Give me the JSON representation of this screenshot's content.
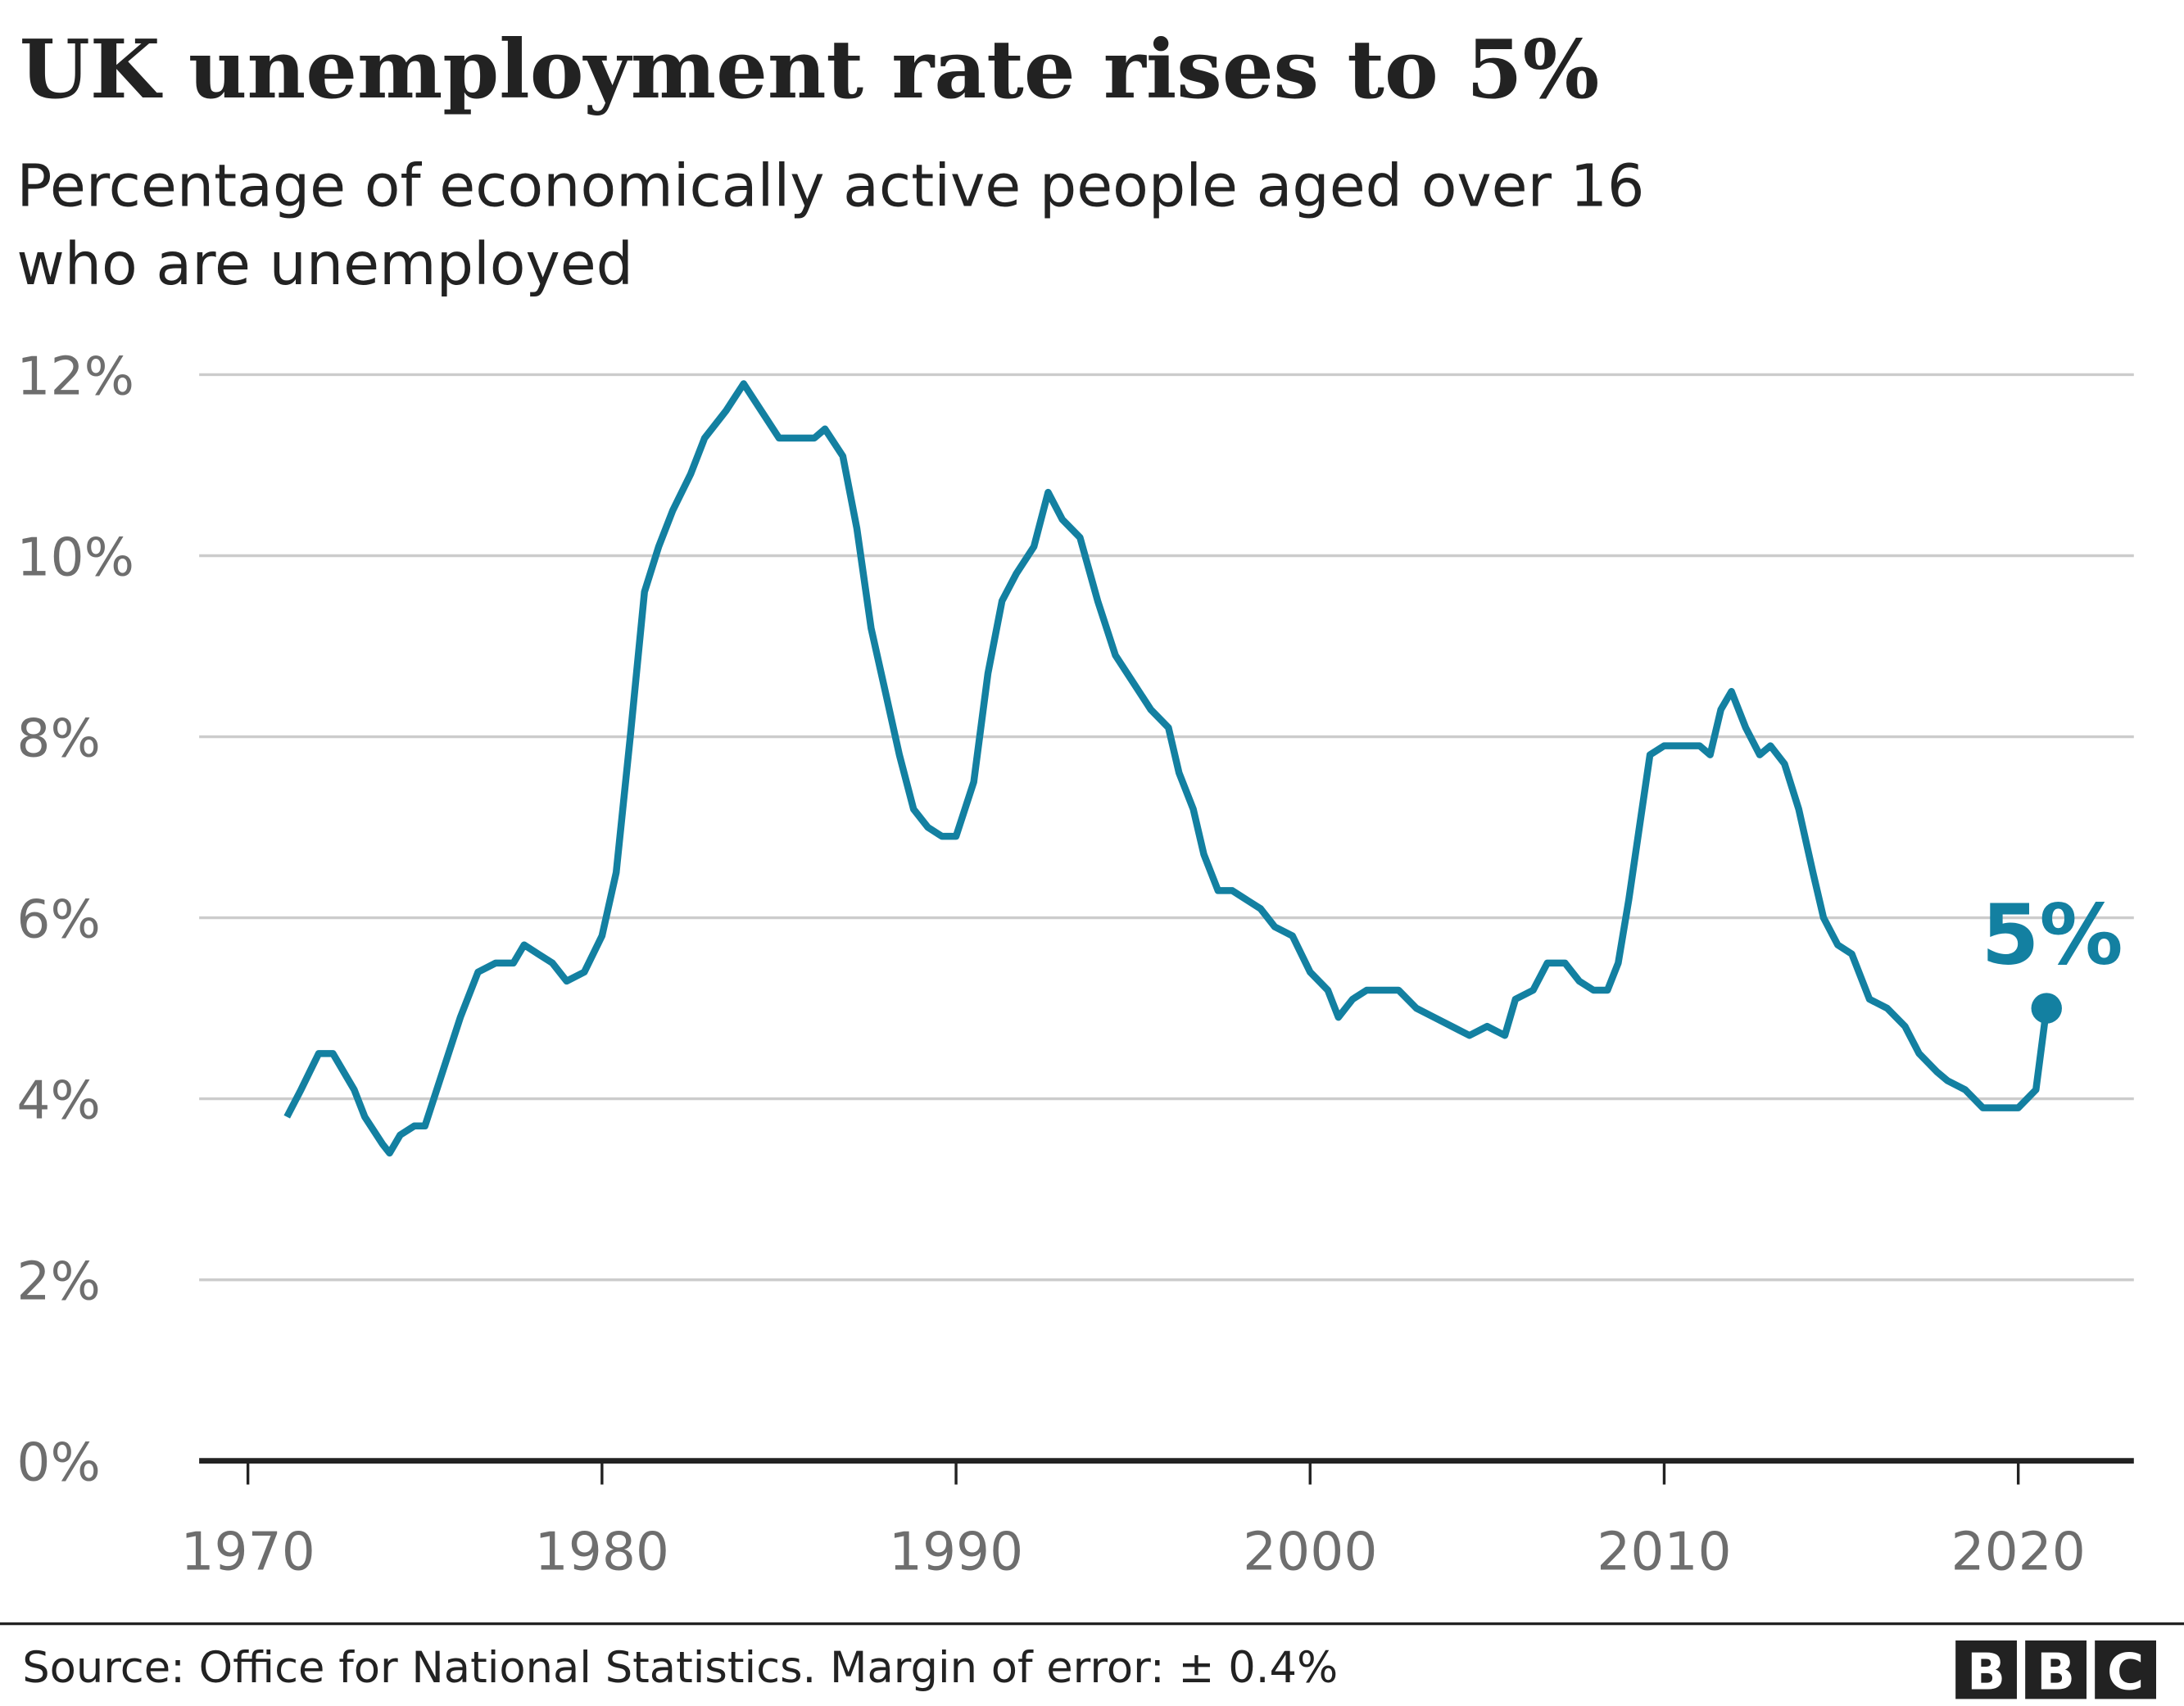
{
  "chart_data": {
    "type": "line",
    "title": "UK unemployment rate rises to 5%",
    "subtitle_lines": [
      "Percentage of economically active people aged over 16",
      "who are unemployed"
    ],
    "xlabel": "",
    "ylabel": "",
    "xlim": [
      1968,
      2023.3
    ],
    "ylim": [
      0,
      12
    ],
    "x_ticks": [
      1970,
      1980,
      1990,
      2000,
      2010,
      2020
    ],
    "x_tick_labels": [
      "1970",
      "1980",
      "1990",
      "2000",
      "2010",
      "2020"
    ],
    "y_ticks": [
      0,
      2,
      4,
      6,
      8,
      10,
      12
    ],
    "y_tick_labels": [
      "0%",
      "2%",
      "4%",
      "6%",
      "8%",
      "10%",
      "12%"
    ],
    "grid": "horizontal",
    "line_color": "#1380A1",
    "annotation": {
      "label": "5%",
      "x": 2020.8,
      "y": 5.0
    },
    "series": [
      {
        "x": [
          1971.1,
          1971.5,
          1972.0,
          1972.4,
          1973.0,
          1973.3,
          1973.8,
          1974.0,
          1974.3,
          1974.7,
          1975.0,
          1975.5,
          1976.0,
          1976.5,
          1977.0,
          1977.5,
          1977.8,
          1978.2,
          1978.6,
          1979.0,
          1979.5,
          1980.0,
          1980.4,
          1980.8,
          1981.2,
          1981.6,
          1982.0,
          1982.5,
          1982.9,
          1983.5,
          1984.0,
          1984.5,
          1985.0,
          1985.5,
          1986.0,
          1986.3,
          1986.8,
          1987.2,
          1987.6,
          1988.0,
          1988.4,
          1988.8,
          1989.2,
          1989.6,
          1990.0,
          1990.5,
          1990.9,
          1991.3,
          1991.7,
          1992.2,
          1992.6,
          1993.0,
          1993.5,
          1994.0,
          1994.5,
          1995.0,
          1995.5,
          1996.0,
          1996.3,
          1996.7,
          1997.0,
          1997.4,
          1997.8,
          1998.2,
          1998.6,
          1999.0,
          1999.5,
          2000.0,
          2000.5,
          2000.8,
          2001.2,
          2001.6,
          2002.0,
          2002.5,
          2003.0,
          2003.5,
          2004.0,
          2004.5,
          2005.0,
          2005.5,
          2005.8,
          2006.3,
          2006.7,
          2007.2,
          2007.6,
          2008.0,
          2008.4,
          2008.7,
          2009.0,
          2009.3,
          2009.6,
          2010.0,
          2010.5,
          2011.0,
          2011.3,
          2011.6,
          2011.9,
          2012.3,
          2012.7,
          2013.0,
          2013.4,
          2013.8,
          2014.2,
          2014.5,
          2014.9,
          2015.3,
          2015.8,
          2016.3,
          2016.8,
          2017.2,
          2017.7,
          2018.0,
          2018.5,
          2019.0,
          2019.5,
          2020.0,
          2020.5,
          2020.8
        ],
        "values": [
          3.8,
          4.1,
          4.5,
          4.5,
          4.1,
          3.8,
          3.5,
          3.4,
          3.6,
          3.7,
          3.7,
          4.3,
          4.9,
          5.4,
          5.5,
          5.5,
          5.7,
          5.6,
          5.5,
          5.3,
          5.4,
          5.8,
          6.5,
          8.0,
          9.6,
          10.1,
          10.5,
          10.9,
          11.3,
          11.6,
          11.9,
          11.6,
          11.3,
          11.3,
          11.3,
          11.4,
          11.1,
          10.3,
          9.2,
          8.5,
          7.8,
          7.2,
          7.0,
          6.9,
          6.9,
          7.5,
          8.7,
          9.5,
          9.8,
          10.1,
          10.7,
          10.4,
          10.2,
          9.5,
          8.9,
          8.6,
          8.3,
          8.1,
          7.6,
          7.2,
          6.7,
          6.3,
          6.3,
          6.2,
          6.1,
          5.9,
          5.8,
          5.4,
          5.2,
          4.9,
          5.1,
          5.2,
          5.2,
          5.2,
          5.0,
          4.9,
          4.8,
          4.7,
          4.8,
          4.7,
          5.1,
          5.2,
          5.5,
          5.5,
          5.3,
          5.2,
          5.2,
          5.5,
          6.2,
          7.0,
          7.8,
          7.9,
          7.9,
          7.9,
          7.8,
          8.3,
          8.5,
          8.1,
          7.8,
          7.9,
          7.7,
          7.2,
          6.5,
          6.0,
          5.7,
          5.6,
          5.1,
          5.0,
          4.8,
          4.5,
          4.3,
          4.2,
          4.1,
          3.9,
          3.9,
          3.9,
          4.1,
          5.0
        ]
      }
    ]
  },
  "footer": {
    "source": "Source: Office for National Statistics. Margin of error: ± 0.4%",
    "logo_letters": [
      "B",
      "B",
      "C"
    ]
  }
}
